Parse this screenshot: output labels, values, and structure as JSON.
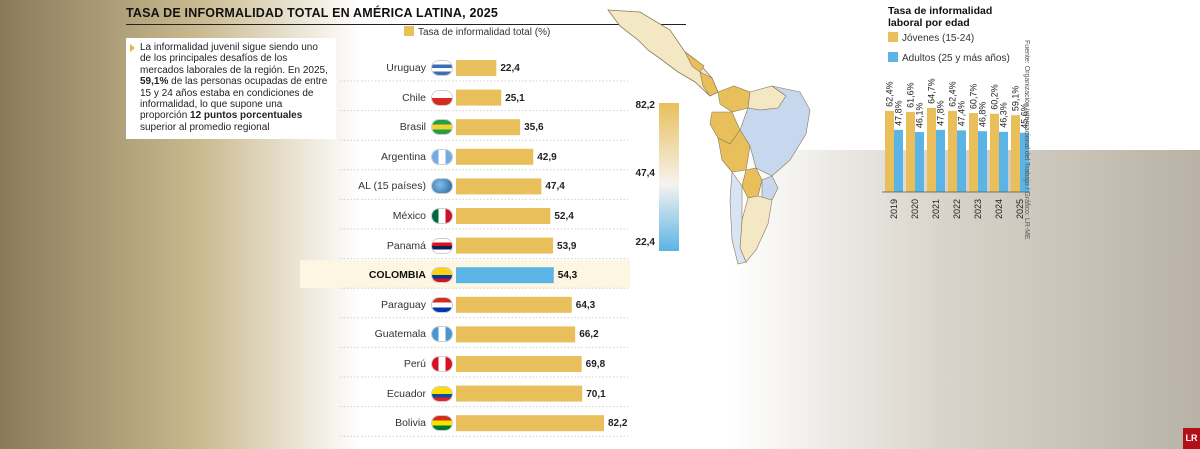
{
  "title": "TASA DE INFORMALIDAD TOTAL EN AMÉRICA LATINA, 2025",
  "note": {
    "p1": "La informalidad juvenil sigue siendo uno de los principales desafíos de los mercados laborales de la región. En 2025, ",
    "b1": "59,1%",
    "p2": " de las personas ocupadas de entre 15 y 24 años estaba en condiciones de informalidad, lo que supone una proporción ",
    "b2": "12 puntos porcentuales",
    "p3": " superior al promedio regional"
  },
  "colors": {
    "yellow": "#e8bf5b",
    "blue": "#5ab4e5",
    "highlight_row": "#fdf6e3"
  },
  "chart_data": [
    {
      "type": "bar",
      "orientation": "horizontal",
      "legend": "Tasa de informalidad total (%)",
      "categories": [
        "Uruguay",
        "Chile",
        "Brasil",
        "Argentina",
        "AL (15 países)",
        "México",
        "Panamá",
        "COLOMBIA",
        "Paraguay",
        "Guatemala",
        "Perú",
        "Ecuador",
        "Bolivia"
      ],
      "values": [
        22.4,
        25.1,
        35.6,
        42.9,
        47.4,
        52.4,
        53.9,
        54.3,
        64.3,
        66.2,
        69.8,
        70.1,
        82.2
      ],
      "value_labels": [
        "22,4",
        "25,1",
        "35,6",
        "42,9",
        "47,4",
        "52,4",
        "53,9",
        "54,3",
        "64,3",
        "66,2",
        "69,8",
        "70,1",
        "82,2"
      ],
      "highlight": "COLOMBIA",
      "flag_icons": [
        "flag-uruguay",
        "flag-chile",
        "flag-brazil",
        "flag-argentina",
        "globe-icon",
        "flag-mexico",
        "flag-panama",
        "flag-colombia",
        "flag-paraguay",
        "flag-guatemala",
        "flag-peru",
        "flag-ecuador",
        "flag-bolivia"
      ],
      "scale_labels": [
        "82,2",
        "47,4",
        "22,4"
      ]
    },
    {
      "type": "bar",
      "title": "Tasa de informalidad laboral por edad",
      "categories": [
        "2019",
        "2020",
        "2021",
        "2022",
        "2023",
        "2024",
        "2025"
      ],
      "series": [
        {
          "name": "Jóvenes (15-24)",
          "values": [
            62.4,
            61.6,
            64.7,
            62.4,
            60.7,
            60.2,
            59.1
          ],
          "labels": [
            "62,4%",
            "61,6%",
            "64,7%",
            "62,4%",
            "60,7%",
            "60,2%",
            "59,1%"
          ]
        },
        {
          "name": "Adultos (25 y más años)",
          "values": [
            47.8,
            46.1,
            47.8,
            47.4,
            46.8,
            46.3,
            45.6
          ],
          "labels": [
            "47,8%",
            "46,1%",
            "47,8%",
            "47,4%",
            "46,8%",
            "46,3%",
            "45,6%"
          ]
        }
      ],
      "source": "Fuente: Organización Internacional del Trabajo / Gráfico: LR-ME"
    }
  ],
  "logo_text": "LR"
}
